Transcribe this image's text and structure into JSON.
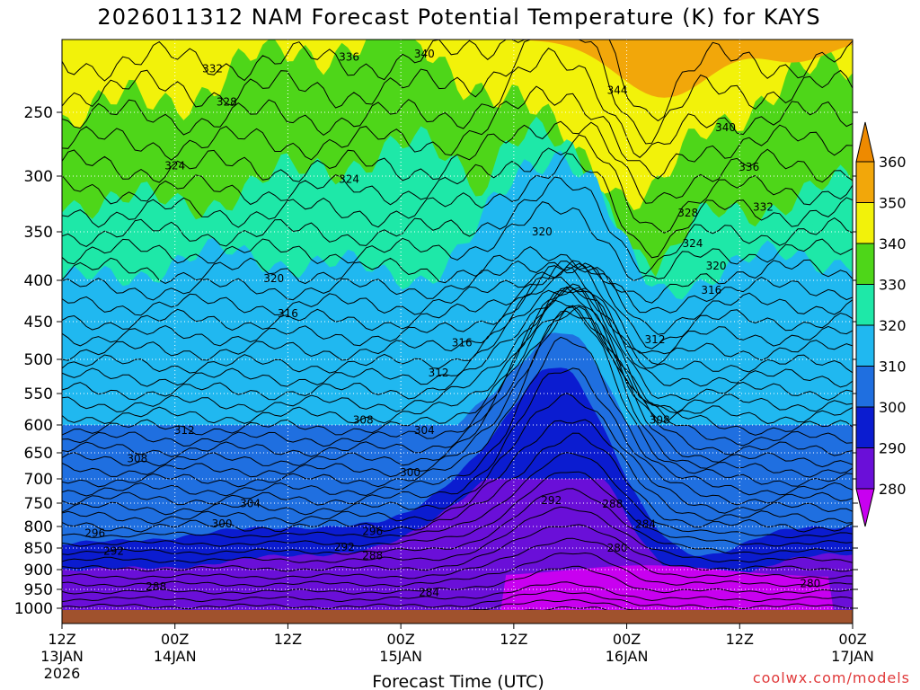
{
  "chart_data": {
    "type": "contour",
    "title": "2026011312 NAM Forecast Potential Temperature (K) for KAYS",
    "xlabel": "Forecast Time (UTC)",
    "ylabel": "",
    "credit": "coolwx.com/models",
    "x_ticks": [
      {
        "hours": 0,
        "line1": "12Z",
        "line2": "13JAN",
        "line3": "2026"
      },
      {
        "hours": 12,
        "line1": "00Z",
        "line2": "14JAN",
        "line3": ""
      },
      {
        "hours": 24,
        "line1": "12Z",
        "line2": "",
        "line3": ""
      },
      {
        "hours": 36,
        "line1": "00Z",
        "line2": "15JAN",
        "line3": ""
      },
      {
        "hours": 48,
        "line1": "12Z",
        "line2": "",
        "line3": ""
      },
      {
        "hours": 60,
        "line1": "00Z",
        "line2": "16JAN",
        "line3": ""
      },
      {
        "hours": 72,
        "line1": "12Z",
        "line2": "",
        "line3": ""
      },
      {
        "hours": 84,
        "line1": "00Z",
        "line2": "17JAN",
        "line3": ""
      }
    ],
    "xlim": [
      0,
      84
    ],
    "y_ticks": [
      250,
      300,
      350,
      400,
      450,
      500,
      550,
      600,
      650,
      700,
      750,
      800,
      850,
      900,
      950,
      1000
    ],
    "ylim": [
      200,
      1020
    ],
    "colorbar": {
      "levels": [
        280,
        290,
        300,
        310,
        320,
        330,
        340,
        350,
        360
      ],
      "colors": [
        "#c800f0",
        "#6a0fd8",
        "#0b1cd0",
        "#1f6fe0",
        "#20b8f0",
        "#1ee8a8",
        "#4ed619",
        "#f2f20a",
        "#f2a70a",
        "#ee8a00"
      ]
    },
    "contour_labels": [
      {
        "value": "332",
        "hours": 16,
        "hpa": 220
      },
      {
        "value": "336",
        "hours": 30.5,
        "hpa": 212
      },
      {
        "value": "340",
        "hours": 38.5,
        "hpa": 210
      },
      {
        "value": "328",
        "hours": 17.5,
        "hpa": 243
      },
      {
        "value": "344",
        "hours": 59,
        "hpa": 235
      },
      {
        "value": "340",
        "hours": 70.5,
        "hpa": 262
      },
      {
        "value": "324",
        "hours": 12,
        "hpa": 292
      },
      {
        "value": "324",
        "hours": 30.5,
        "hpa": 303
      },
      {
        "value": "336",
        "hours": 73,
        "hpa": 293
      },
      {
        "value": "328",
        "hours": 66.5,
        "hpa": 333
      },
      {
        "value": "332",
        "hours": 74.5,
        "hpa": 328
      },
      {
        "value": "320",
        "hours": 51,
        "hpa": 350
      },
      {
        "value": "324",
        "hours": 67,
        "hpa": 362
      },
      {
        "value": "320",
        "hours": 22.5,
        "hpa": 398
      },
      {
        "value": "320",
        "hours": 69.5,
        "hpa": 385
      },
      {
        "value": "316",
        "hours": 69,
        "hpa": 412
      },
      {
        "value": "316",
        "hours": 24,
        "hpa": 440
      },
      {
        "value": "316",
        "hours": 42.5,
        "hpa": 478
      },
      {
        "value": "312",
        "hours": 63,
        "hpa": 474
      },
      {
        "value": "312",
        "hours": 40,
        "hpa": 520
      },
      {
        "value": "308",
        "hours": 32,
        "hpa": 592
      },
      {
        "value": "308",
        "hours": 63.5,
        "hpa": 592
      },
      {
        "value": "312",
        "hours": 13,
        "hpa": 610
      },
      {
        "value": "304",
        "hours": 38.5,
        "hpa": 610
      },
      {
        "value": "308",
        "hours": 8,
        "hpa": 661
      },
      {
        "value": "300",
        "hours": 37,
        "hpa": 688
      },
      {
        "value": "292",
        "hours": 52,
        "hpa": 744
      },
      {
        "value": "288",
        "hours": 58.5,
        "hpa": 752
      },
      {
        "value": "304",
        "hours": 20,
        "hpa": 751
      },
      {
        "value": "300",
        "hours": 17,
        "hpa": 794
      },
      {
        "value": "296",
        "hours": 3.5,
        "hpa": 816
      },
      {
        "value": "284",
        "hours": 62,
        "hpa": 795
      },
      {
        "value": "296",
        "hours": 33,
        "hpa": 811
      },
      {
        "value": "292",
        "hours": 5.5,
        "hpa": 857
      },
      {
        "value": "292",
        "hours": 30,
        "hpa": 848
      },
      {
        "value": "280",
        "hours": 59,
        "hpa": 850
      },
      {
        "value": "288",
        "hours": 33,
        "hpa": 868
      },
      {
        "value": "288",
        "hours": 10,
        "hpa": 943
      },
      {
        "value": "284",
        "hours": 39,
        "hpa": 958
      },
      {
        "value": "280",
        "hours": 79.5,
        "hpa": 935
      }
    ]
  }
}
